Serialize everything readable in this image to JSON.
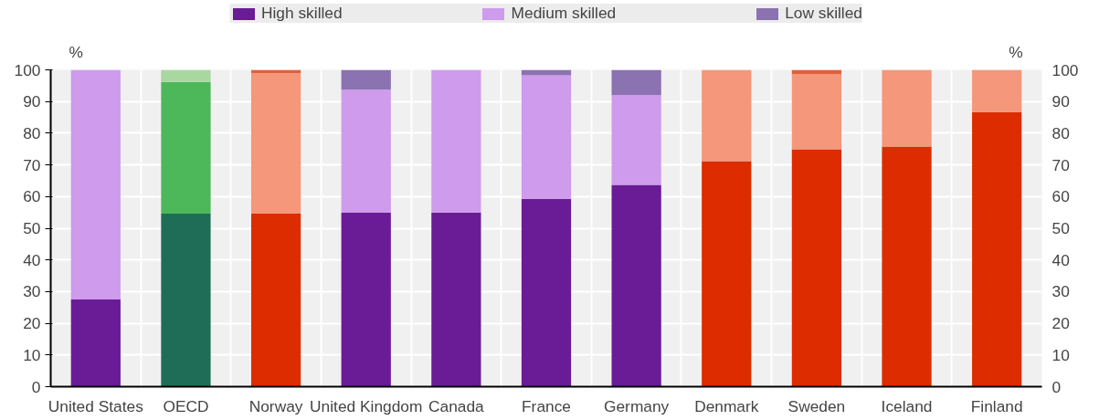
{
  "chart_data": {
    "type": "bar",
    "stacked": true,
    "categories": [
      "United States",
      "OECD",
      "Norway",
      "United Kingdom",
      "Canada",
      "France",
      "Germany",
      "Denmark",
      "Sweden",
      "Iceland",
      "Finland"
    ],
    "series": [
      {
        "name": "High skilled",
        "color": "#6a1b96",
        "colors": [
          "#6a1b96",
          "#1f6d57",
          "#dc2c00",
          "#6a1b96",
          "#6a1b96",
          "#6a1b96",
          "#6a1b96",
          "#dc2c00",
          "#dc2c00",
          "#dc2c00",
          "#dc2c00"
        ],
        "values": [
          27.5,
          54.6,
          54.6,
          54.9,
          55.0,
          59.3,
          63.7,
          71.2,
          74.9,
          75.8,
          86.7
        ]
      },
      {
        "name": "Medium skilled",
        "color": "#cf9bec",
        "colors": [
          "#cf9bec",
          "#4cb85a",
          "#f4977a",
          "#cf9bec",
          "#cf9bec",
          "#cf9bec",
          "#cf9bec",
          "#f4977a",
          "#f4977a",
          "#f4977a",
          "#f4977a"
        ],
        "values": [
          72.5,
          41.6,
          44.4,
          38.8,
          45.0,
          39.0,
          28.4,
          28.8,
          23.8,
          24.2,
          13.3
        ]
      },
      {
        "name": "Low skilled",
        "color": "#8b72b1",
        "colors": [
          "#8b72b1",
          "#a8d8a0",
          "#e0603a",
          "#8b72b1",
          "#8b72b1",
          "#8b72b1",
          "#8b72b1",
          "#e0603a",
          "#e0603a",
          "#e0603a",
          "#e0603a"
        ],
        "values": [
          0,
          3.8,
          1.0,
          6.3,
          0,
          1.7,
          7.9,
          0,
          1.3,
          0,
          0
        ]
      }
    ],
    "ylabel": "%",
    "y2label": "%",
    "ylim": [
      0,
      100
    ],
    "yticks": [
      0,
      10,
      20,
      30,
      40,
      50,
      60,
      70,
      80,
      90,
      100
    ],
    "y2lim": [
      0,
      100
    ],
    "y2ticks": [
      0,
      10,
      20,
      30,
      40,
      50,
      60,
      70,
      80,
      90,
      100
    ],
    "grid": true,
    "legend": "top"
  }
}
